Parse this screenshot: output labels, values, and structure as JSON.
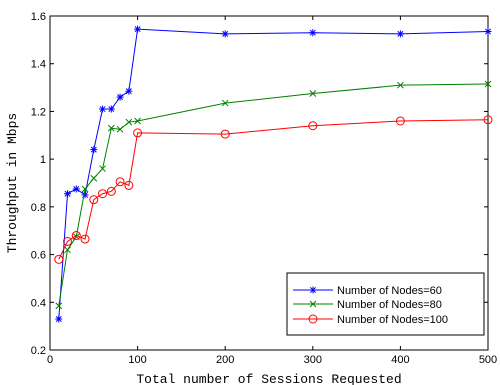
{
  "chart_data": {
    "type": "line",
    "xlabel": "Total number of Sessions Requested",
    "ylabel": "Throughput in Mbps",
    "xlim": [
      0,
      500
    ],
    "ylim": [
      0.2,
      1.6
    ],
    "xticks": [
      0,
      100,
      200,
      300,
      400,
      500
    ],
    "yticks": [
      0.2,
      0.4,
      0.6,
      0.8,
      1,
      1.2,
      1.4,
      1.6
    ],
    "xtick_labels": [
      "0",
      "100",
      "200",
      "300",
      "400",
      "500"
    ],
    "ytick_labels": [
      "0.2",
      "0.4",
      "0.6",
      "0.8",
      "1",
      "1.2",
      "1.4",
      "1.6"
    ],
    "grid": false,
    "legend_position": "lower-right",
    "series": [
      {
        "name": "Number of Nodes=60",
        "color": "#0000ff",
        "marker": "star",
        "x": [
          10,
          20,
          30,
          40,
          50,
          60,
          70,
          80,
          90,
          100,
          200,
          300,
          400,
          500
        ],
        "y": [
          0.33,
          0.855,
          0.875,
          0.85,
          1.04,
          1.21,
          1.21,
          1.26,
          1.285,
          1.545,
          1.525,
          1.53,
          1.525,
          1.535
        ]
      },
      {
        "name": "Number of Nodes=80",
        "color": "#008000",
        "marker": "x",
        "x": [
          10,
          20,
          30,
          40,
          50,
          60,
          70,
          80,
          90,
          100,
          200,
          300,
          400,
          500
        ],
        "y": [
          0.385,
          0.62,
          0.675,
          0.875,
          0.92,
          0.96,
          1.13,
          1.125,
          1.155,
          1.16,
          1.235,
          1.275,
          1.31,
          1.315
        ]
      },
      {
        "name": "Number of Nodes=100",
        "color": "#ff0000",
        "marker": "circle",
        "x": [
          10,
          20,
          30,
          40,
          50,
          60,
          70,
          80,
          90,
          100,
          200,
          300,
          400,
          500
        ],
        "y": [
          0.58,
          0.655,
          0.68,
          0.665,
          0.83,
          0.855,
          0.865,
          0.905,
          0.89,
          1.11,
          1.105,
          1.14,
          1.16,
          1.165
        ]
      }
    ]
  }
}
